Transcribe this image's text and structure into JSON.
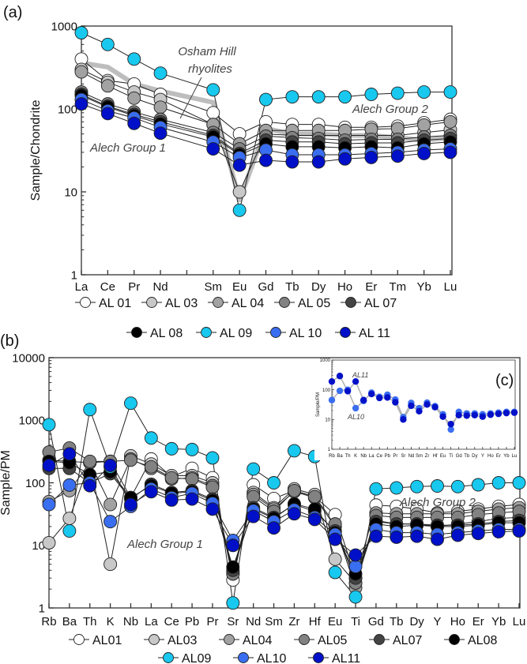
{
  "panel_labels": {
    "a": "(a)",
    "b": "(b)",
    "c": "(c)"
  },
  "series_styles": [
    {
      "name": "AL01",
      "legend_a": "AL 01",
      "color": "#ffffff"
    },
    {
      "name": "AL03",
      "legend_a": "AL 03",
      "color": "#c8c8c8"
    },
    {
      "name": "AL04",
      "legend_a": "AL 04",
      "color": "#a2a2a2"
    },
    {
      "name": "AL05",
      "legend_a": "AL 05",
      "color": "#828282"
    },
    {
      "name": "AL07",
      "legend_a": "AL 07",
      "color": "#444444"
    },
    {
      "name": "AL08",
      "legend_a": "AL 08",
      "color": "#000000"
    },
    {
      "name": "AL09",
      "legend_a": "AL 09",
      "color": "#18c8ee"
    },
    {
      "name": "AL10",
      "legend_a": "AL 10",
      "color": "#3a6ef0"
    },
    {
      "name": "AL11",
      "legend_a": "AL 11",
      "color": "#0010c8"
    }
  ],
  "chart_data": [
    {
      "id": "a",
      "type": "line",
      "scale": "log",
      "ylabel": "Sample/Chondrite",
      "ylim": [
        1,
        1000
      ],
      "yticks": [
        "1",
        "10",
        "100",
        "1000"
      ],
      "categories": [
        "La",
        "Ce",
        "Pr",
        "Nd",
        "",
        "Sm",
        "Eu",
        "Gd",
        "Tb",
        "Dy",
        "Ho",
        "Er",
        "Tm",
        "Yb",
        "Lu"
      ],
      "annotations": [
        "Osham Hill",
        "rhyolites",
        "Alech Group 2",
        "Alech Group 1"
      ],
      "reference": {
        "name": "Osham Hill rhyolites",
        "color": "#bdbdbd",
        "values": [
          360,
          320,
          200,
          165,
          null,
          120,
          8,
          58,
          50,
          50,
          48,
          48,
          45,
          42,
          45
        ]
      },
      "series": [
        {
          "name": "AL 01",
          "values": [
            400,
            220,
            200,
            150,
            null,
            90,
            50,
            70,
            65,
            65,
            60,
            60,
            62,
            68,
            75
          ]
        },
        {
          "name": "AL 03",
          "values": [
            300,
            210,
            160,
            130,
            null,
            65,
            10,
            50,
            48,
            48,
            48,
            48,
            48,
            52,
            56
          ]
        },
        {
          "name": "AL 04",
          "values": [
            280,
            190,
            135,
            105,
            null,
            65,
            38,
            55,
            55,
            55,
            55,
            57,
            58,
            64,
            70
          ]
        },
        {
          "name": "AL 05",
          "values": [
            160,
            115,
            92,
            75,
            null,
            52,
            33,
            47,
            45,
            44,
            42,
            43,
            43,
            46,
            48
          ]
        },
        {
          "name": "AL 07",
          "values": [
            150,
            108,
            86,
            70,
            null,
            48,
            29,
            42,
            40,
            40,
            38,
            39,
            39,
            42,
            44
          ]
        },
        {
          "name": "AL 08",
          "values": [
            145,
            105,
            83,
            66,
            null,
            46,
            28,
            38,
            35,
            35,
            34,
            35,
            34,
            38,
            40
          ]
        },
        {
          "name": "AL 09",
          "values": [
            830,
            600,
            400,
            270,
            null,
            170,
            6,
            130,
            140,
            140,
            140,
            150,
            155,
            160,
            160
          ]
        },
        {
          "name": "AL 10",
          "values": [
            130,
            95,
            78,
            60,
            null,
            40,
            26,
            32,
            28,
            28,
            28,
            29,
            30,
            32,
            33
          ]
        },
        {
          "name": "AL 11",
          "values": [
            115,
            88,
            67,
            51,
            null,
            33,
            21,
            24,
            23,
            23,
            25,
            26,
            27,
            29,
            30
          ]
        }
      ]
    },
    {
      "id": "b",
      "type": "line",
      "scale": "log",
      "ylabel": "Sample/PM",
      "ylim": [
        1,
        10000
      ],
      "yticks": [
        "1",
        "10",
        "100",
        "1000",
        "10000"
      ],
      "categories": [
        "Rb",
        "Ba",
        "Th",
        "K",
        "Nb",
        "La",
        "Ce",
        "Pb",
        "Pr",
        "Sr",
        "Nd",
        "Sm",
        "Zr",
        "Hf",
        "Eu",
        "Ti",
        "Gd",
        "Tb",
        "Dy",
        "Y",
        "Ho",
        "Er",
        "Yb",
        "Lu"
      ],
      "annotations": [
        "Alech Group 1",
        "Alech Group 2"
      ],
      "series": [
        {
          "name": "AL01",
          "values": [
            230,
            220,
            210,
            220,
            58,
            240,
            125,
            170,
            120,
            2.8,
            93,
            56,
            75,
            60,
            31,
            3,
            44,
            42,
            38,
            33,
            35,
            38,
            42,
            45
          ]
        },
        {
          "name": "AL03",
          "values": [
            11,
            27,
            210,
            5,
            270,
            200,
            130,
            130,
            100,
            3.5,
            70,
            40,
            80,
            65,
            6,
            2.5,
            25,
            22,
            22,
            20,
            22,
            24,
            27,
            28
          ]
        },
        {
          "name": "AL04",
          "values": [
            50,
            75,
            210,
            45,
            240,
            170,
            115,
            120,
            90,
            3.8,
            65,
            38,
            72,
            58,
            20,
            2.1,
            33,
            32,
            32,
            32,
            32,
            35,
            38,
            40
          ]
        },
        {
          "name": "AL05",
          "values": [
            310,
            360,
            220,
            220,
            230,
            180,
            120,
            115,
            85,
            3.5,
            60,
            35,
            75,
            60,
            22,
            2.5,
            30,
            28,
            28,
            28,
            28,
            31,
            33,
            35
          ]
        },
        {
          "name": "AL07",
          "values": [
            170,
            170,
            100,
            140,
            55,
            95,
            70,
            75,
            55,
            4,
            40,
            28,
            45,
            35,
            17,
            3,
            24,
            22,
            22,
            21,
            21,
            22,
            24,
            25
          ]
        },
        {
          "name": "AL08",
          "values": [
            220,
            210,
            135,
            150,
            58,
            90,
            68,
            72,
            52,
            4.5,
            38,
            27,
            46,
            38,
            16,
            3.5,
            22,
            20,
            21,
            20,
            20,
            21,
            23,
            23
          ]
        },
        {
          "name": "AL09",
          "values": [
            850,
            17,
            1480,
            180,
            1870,
            520,
            350,
            340,
            250,
            1.2,
            166,
            100,
            325,
            263,
            3.7,
            1.5,
            80,
            83,
            87,
            89,
            87,
            93,
            100,
            100
          ]
        },
        {
          "name": "AL10",
          "values": [
            45,
            92,
            100,
            24,
            42,
            80,
            58,
            68,
            47,
            12,
            36,
            24,
            37,
            28,
            15,
            4.6,
            18,
            16,
            16,
            15,
            16,
            17,
            18,
            18
          ]
        },
        {
          "name": "AL11",
          "values": [
            190,
            290,
            90,
            190,
            45,
            72,
            53,
            55,
            38,
            10,
            29,
            19,
            32,
            26,
            12.5,
            7,
            14,
            13.5,
            14,
            12.5,
            14.5,
            15.5,
            16.5,
            17
          ]
        }
      ]
    },
    {
      "id": "c",
      "type": "line",
      "scale": "log",
      "ylabel": "Sample/PM",
      "ylim": [
        1,
        1000
      ],
      "yticks": [
        "1",
        "10",
        "100",
        "1000"
      ],
      "categories": [
        "Rb",
        "Ba",
        "Th",
        "K",
        "Nb",
        "La",
        "Ce",
        "Pb",
        "Pr",
        "Sr",
        "Nd",
        "Sm",
        "Zr",
        "Hf",
        "Eu",
        "Ti",
        "Gd",
        "Tb",
        "Dy",
        "Y",
        "Ho",
        "Er",
        "Yb",
        "Lu"
      ],
      "annotations": [
        "AL11",
        "AL10"
      ],
      "series": [
        {
          "name": "AL10",
          "values": [
            45,
            92,
            100,
            24,
            42,
            80,
            58,
            68,
            47,
            12,
            36,
            24,
            37,
            28,
            15,
            4.6,
            18,
            16,
            16,
            15,
            16,
            17,
            18,
            18
          ]
        },
        {
          "name": "AL11",
          "values": [
            190,
            290,
            90,
            190,
            45,
            72,
            53,
            55,
            38,
            10,
            29,
            19,
            32,
            26,
            12.5,
            7,
            14,
            13.5,
            14,
            12.5,
            14.5,
            15.5,
            16.5,
            17
          ]
        }
      ]
    }
  ]
}
